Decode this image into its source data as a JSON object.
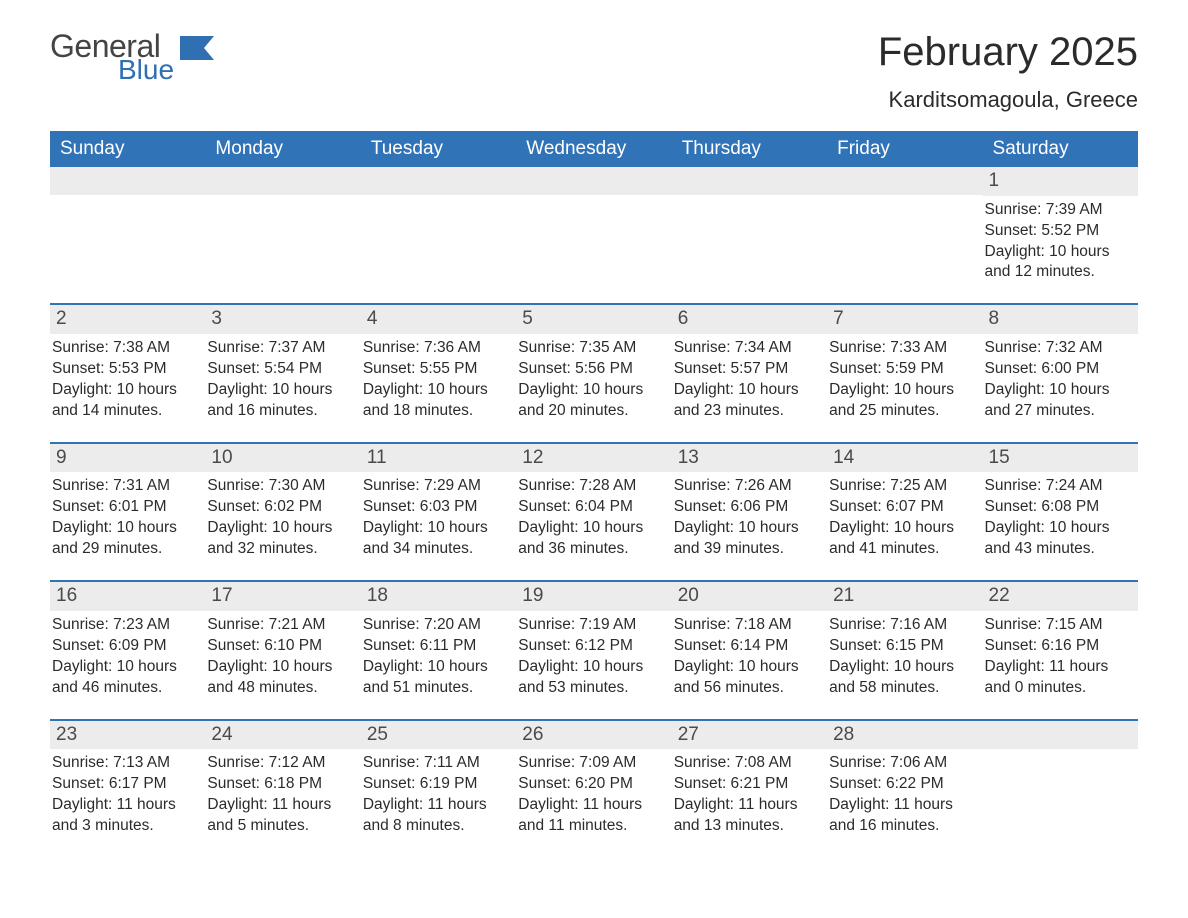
{
  "logo": {
    "text1": "General",
    "text2": "Blue",
    "flag_color": "#2f6fb2"
  },
  "title": "February 2025",
  "location": "Karditsomagoula, Greece",
  "colors": {
    "header_bg": "#3173b7",
    "header_text": "#ffffff",
    "daynum_bg": "#ececec",
    "grid_border": "#3173b7",
    "body_text": "#2b2b2b",
    "page_bg": "#ffffff"
  },
  "day_names": [
    "Sunday",
    "Monday",
    "Tuesday",
    "Wednesday",
    "Thursday",
    "Friday",
    "Saturday"
  ],
  "weeks": [
    [
      {
        "n": null
      },
      {
        "n": null
      },
      {
        "n": null
      },
      {
        "n": null
      },
      {
        "n": null
      },
      {
        "n": null
      },
      {
        "n": 1,
        "sunrise": "7:39 AM",
        "sunset": "5:52 PM",
        "daylight": "10 hours and 12 minutes."
      }
    ],
    [
      {
        "n": 2,
        "sunrise": "7:38 AM",
        "sunset": "5:53 PM",
        "daylight": "10 hours and 14 minutes."
      },
      {
        "n": 3,
        "sunrise": "7:37 AM",
        "sunset": "5:54 PM",
        "daylight": "10 hours and 16 minutes."
      },
      {
        "n": 4,
        "sunrise": "7:36 AM",
        "sunset": "5:55 PM",
        "daylight": "10 hours and 18 minutes."
      },
      {
        "n": 5,
        "sunrise": "7:35 AM",
        "sunset": "5:56 PM",
        "daylight": "10 hours and 20 minutes."
      },
      {
        "n": 6,
        "sunrise": "7:34 AM",
        "sunset": "5:57 PM",
        "daylight": "10 hours and 23 minutes."
      },
      {
        "n": 7,
        "sunrise": "7:33 AM",
        "sunset": "5:59 PM",
        "daylight": "10 hours and 25 minutes."
      },
      {
        "n": 8,
        "sunrise": "7:32 AM",
        "sunset": "6:00 PM",
        "daylight": "10 hours and 27 minutes."
      }
    ],
    [
      {
        "n": 9,
        "sunrise": "7:31 AM",
        "sunset": "6:01 PM",
        "daylight": "10 hours and 29 minutes."
      },
      {
        "n": 10,
        "sunrise": "7:30 AM",
        "sunset": "6:02 PM",
        "daylight": "10 hours and 32 minutes."
      },
      {
        "n": 11,
        "sunrise": "7:29 AM",
        "sunset": "6:03 PM",
        "daylight": "10 hours and 34 minutes."
      },
      {
        "n": 12,
        "sunrise": "7:28 AM",
        "sunset": "6:04 PM",
        "daylight": "10 hours and 36 minutes."
      },
      {
        "n": 13,
        "sunrise": "7:26 AM",
        "sunset": "6:06 PM",
        "daylight": "10 hours and 39 minutes."
      },
      {
        "n": 14,
        "sunrise": "7:25 AM",
        "sunset": "6:07 PM",
        "daylight": "10 hours and 41 minutes."
      },
      {
        "n": 15,
        "sunrise": "7:24 AM",
        "sunset": "6:08 PM",
        "daylight": "10 hours and 43 minutes."
      }
    ],
    [
      {
        "n": 16,
        "sunrise": "7:23 AM",
        "sunset": "6:09 PM",
        "daylight": "10 hours and 46 minutes."
      },
      {
        "n": 17,
        "sunrise": "7:21 AM",
        "sunset": "6:10 PM",
        "daylight": "10 hours and 48 minutes."
      },
      {
        "n": 18,
        "sunrise": "7:20 AM",
        "sunset": "6:11 PM",
        "daylight": "10 hours and 51 minutes."
      },
      {
        "n": 19,
        "sunrise": "7:19 AM",
        "sunset": "6:12 PM",
        "daylight": "10 hours and 53 minutes."
      },
      {
        "n": 20,
        "sunrise": "7:18 AM",
        "sunset": "6:14 PM",
        "daylight": "10 hours and 56 minutes."
      },
      {
        "n": 21,
        "sunrise": "7:16 AM",
        "sunset": "6:15 PM",
        "daylight": "10 hours and 58 minutes."
      },
      {
        "n": 22,
        "sunrise": "7:15 AM",
        "sunset": "6:16 PM",
        "daylight": "11 hours and 0 minutes."
      }
    ],
    [
      {
        "n": 23,
        "sunrise": "7:13 AM",
        "sunset": "6:17 PM",
        "daylight": "11 hours and 3 minutes."
      },
      {
        "n": 24,
        "sunrise": "7:12 AM",
        "sunset": "6:18 PM",
        "daylight": "11 hours and 5 minutes."
      },
      {
        "n": 25,
        "sunrise": "7:11 AM",
        "sunset": "6:19 PM",
        "daylight": "11 hours and 8 minutes."
      },
      {
        "n": 26,
        "sunrise": "7:09 AM",
        "sunset": "6:20 PM",
        "daylight": "11 hours and 11 minutes."
      },
      {
        "n": 27,
        "sunrise": "7:08 AM",
        "sunset": "6:21 PM",
        "daylight": "11 hours and 13 minutes."
      },
      {
        "n": 28,
        "sunrise": "7:06 AM",
        "sunset": "6:22 PM",
        "daylight": "11 hours and 16 minutes."
      },
      {
        "n": null
      }
    ]
  ],
  "labels": {
    "sunrise": "Sunrise:",
    "sunset": "Sunset:",
    "daylight": "Daylight:"
  }
}
